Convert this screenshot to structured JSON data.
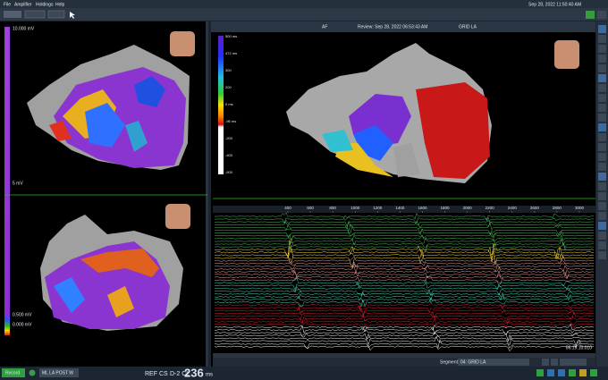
{
  "menu": [
    "File",
    "Amplifier",
    "Holdings",
    "Help"
  ],
  "datetime": "Sep 28, 2022 11:50:40 AM",
  "map_header": {
    "mode": "AF",
    "review": "Review: Sep 28, 2022 06:53:43 AM",
    "map": "GRID LA"
  },
  "voltage_scale": {
    "top": "10.000 mV",
    "mid": "5 mV",
    "low": "0.500 mV",
    "bottom": "0.000 mV"
  },
  "lat_scale": [
    "500 ms",
    "472 ms",
    "300",
    "200",
    "0 ms",
    "-96 ms",
    "-200",
    "-400",
    "-500"
  ],
  "time_ruler": [
    "400",
    "600",
    "800",
    "1000",
    "1200",
    "1400",
    "1600",
    "1800",
    "2000",
    "2200",
    "2400",
    "2600",
    "2800",
    "3000"
  ],
  "segment": {
    "label": "Segment",
    "value": "04: GRID LA"
  },
  "status": {
    "record": "Record",
    "map_name": "ML LA POST W",
    "ref": "REF CS",
    "cl_label": "D-2 CL",
    "cl_value": "236",
    "cl_unit": "ms"
  },
  "time_code": "06:19:10.010"
}
